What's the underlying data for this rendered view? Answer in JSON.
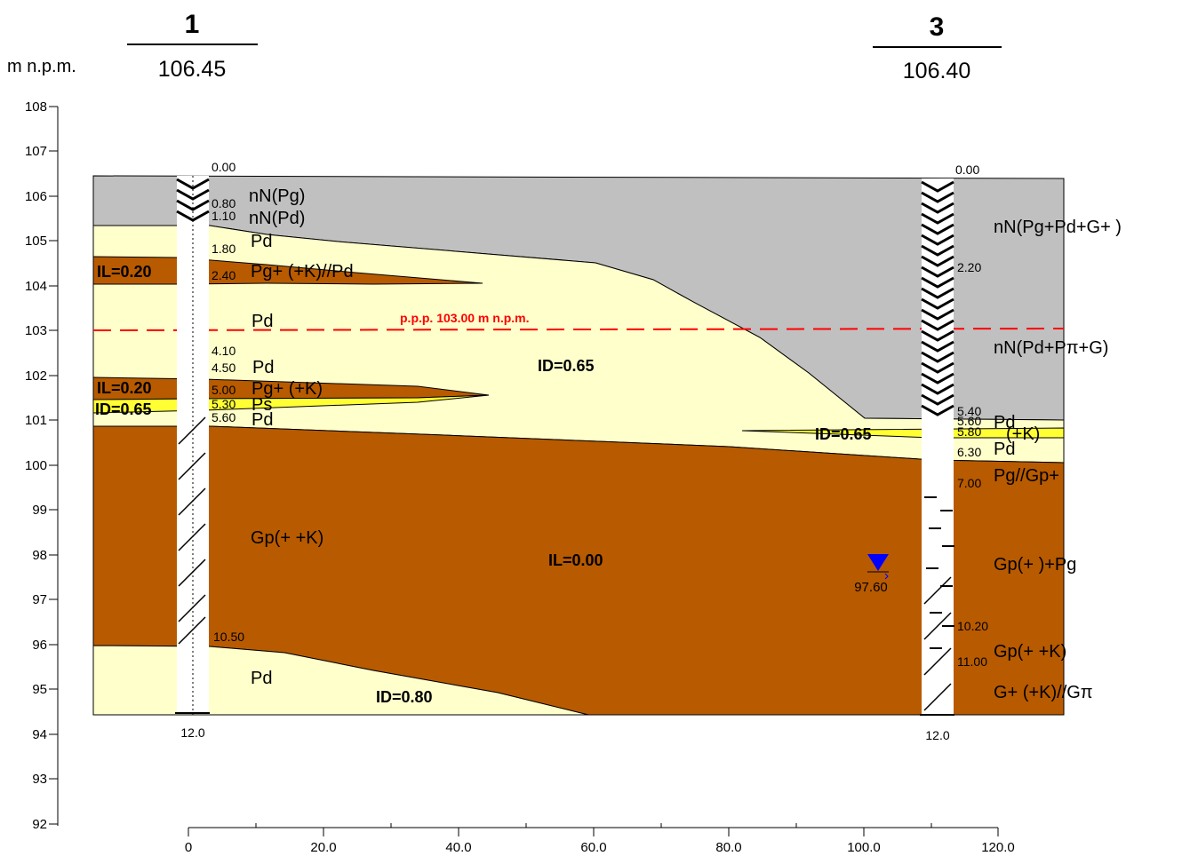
{
  "boreholes": [
    {
      "number": "1",
      "elevation": "106.45",
      "bottom": "12.0"
    },
    {
      "number": "3",
      "elevation": "106.40",
      "bottom": "12.0"
    }
  ],
  "unit_label": "m n.p.m.",
  "y_ticks": [
    "108",
    "107",
    "106",
    "105",
    "104",
    "103",
    "102",
    "101",
    "100",
    "99",
    "98",
    "97",
    "96",
    "95",
    "94",
    "93",
    "92"
  ],
  "x_ticks": [
    "0",
    "20.0",
    "40.0",
    "60.0",
    "80.0",
    "100.0",
    "120.0"
  ],
  "bh1_depths": [
    "0.00",
    "0.80",
    "1.10",
    "1.80",
    "2.40",
    "4.10",
    "4.50",
    "5.00",
    "5.30",
    "5.60",
    "10.50"
  ],
  "bh1_soils": [
    "nN(Pg)",
    "nN(Pd)",
    "Pd",
    "Pg+  (+K)//Pd",
    "Pd",
    "Pd",
    "Pg+  (+K)",
    "Ps",
    "Pd",
    "Gp(+  +K)",
    "Pd"
  ],
  "bh3_depths": [
    "0.00",
    "2.20",
    "5.40",
    "5.60",
    "5.80",
    "6.30",
    "7.00",
    "10.20",
    "11.00"
  ],
  "bh3_soils": [
    "nN(Pg+Pd+G+  )",
    "nN(Pd+Pπ+G)",
    "Pd",
    "(+K)",
    "Pd",
    "Pg//Gp+",
    "Gp(+  )+Pg",
    "Gp(+  +K)",
    "G+  (+K)//Gπ"
  ],
  "params": [
    "IL=0.20",
    "IL=0.20",
    "ID=0.65",
    "ID=0.65",
    "ID=0.65",
    "IL=0.00",
    "ID=0.80"
  ],
  "water_table_label": "p.p.p. 103.00 m n.p.m.",
  "groundwater_level": "97.60",
  "colors": {
    "fill_gray": "#c0c0c0",
    "fill_cream": "#ffffcc",
    "fill_brown": "#b85a00",
    "fill_yellow": "#ffff33",
    "water_line": "#ff0000",
    "water_marker": "#0000ff"
  },
  "icons": [
    "water-table-triangle-icon"
  ]
}
